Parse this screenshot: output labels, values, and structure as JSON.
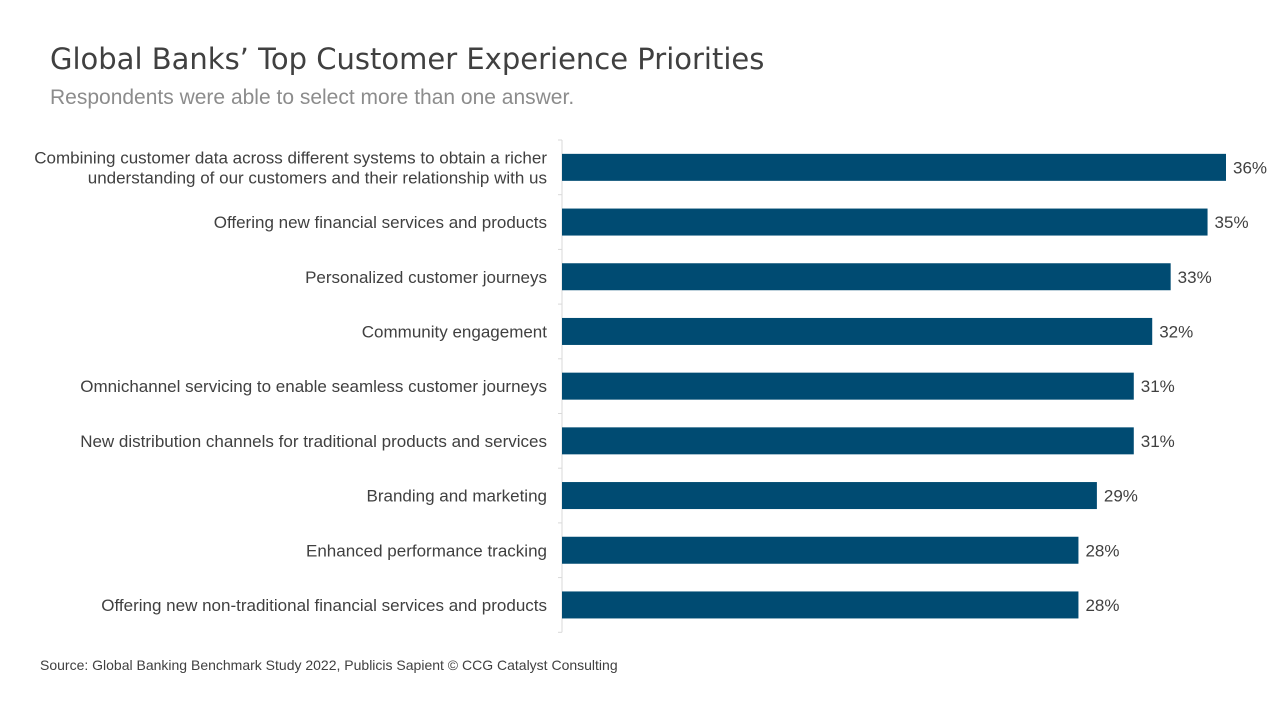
{
  "title": "Global Banks’ Top Customer Experience Priorities",
  "subtitle": "Respondents were able to select more than one answer.",
  "source": "Source: Global Banking Benchmark Study 2022, Publicis Sapient © CCG Catalyst Consulting",
  "colors": {
    "bar": "#004b72",
    "axis": "#d9d9d9",
    "text": "#404040"
  },
  "chart_data": {
    "type": "bar",
    "orientation": "horizontal",
    "title": "Global Banks’ Top Customer Experience Priorities",
    "subtitle": "Respondents were able to select more than one answer.",
    "xlabel": "",
    "ylabel": "",
    "xlim": [
      0,
      36
    ],
    "value_suffix": "%",
    "grid": false,
    "legend": "none",
    "categories": [
      [
        "Combining customer data across different systems to obtain a richer",
        "understanding of our customers and their relationship with us"
      ],
      [
        "Offering new financial services and products"
      ],
      [
        "Personalized customer journeys"
      ],
      [
        "Community engagement"
      ],
      [
        "Omnichannel servicing to enable seamless customer journeys"
      ],
      [
        "New distribution channels for traditional products and services"
      ],
      [
        "Branding and marketing"
      ],
      [
        "Enhanced performance tracking"
      ],
      [
        "Offering new non-traditional financial services and products"
      ]
    ],
    "values": [
      36,
      35,
      33,
      32,
      31,
      31,
      29,
      28,
      28
    ],
    "value_labels": [
      "36%",
      "35%",
      "33%",
      "32%",
      "31%",
      "31%",
      "29%",
      "28%",
      "28%"
    ]
  }
}
